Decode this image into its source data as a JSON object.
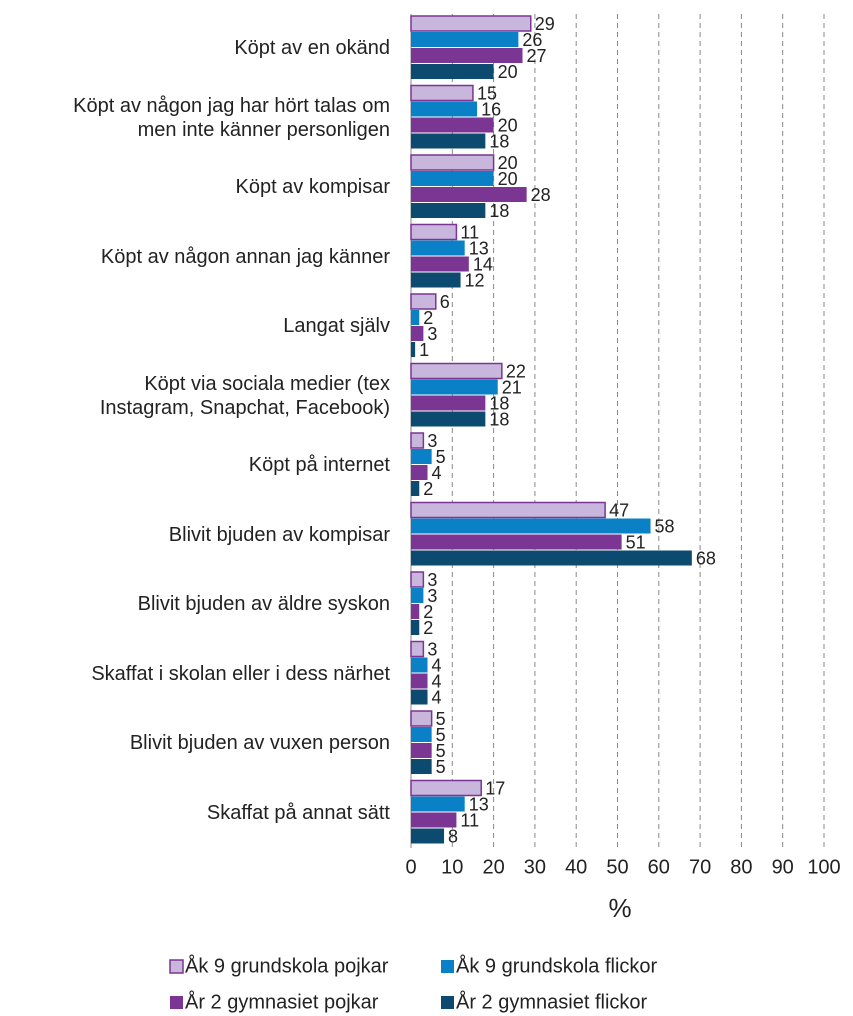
{
  "chart_data": {
    "type": "bar",
    "orientation": "horizontal",
    "x_label": "%",
    "categories": [
      "Köpt av en okänd",
      "Köpt av någon jag har hört talas om\nmen inte känner personligen",
      "Köpt av kompisar",
      "Köpt av någon annan jag känner",
      "Langat själv",
      "Köpt via sociala medier (tex\nInstagram, Snapchat, Facebook)",
      "Köpt på internet",
      "Blivit bjuden av kompisar",
      "Blivit bjuden av äldre syskon",
      "Skaffat i skolan eller i dess närhet",
      "Blivit bjuden av vuxen person",
      "Skaffat på annat sätt"
    ],
    "series": [
      {
        "name": "Åk 9 grundskola pojkar",
        "color": "#c9b6dc",
        "values": [
          29,
          15,
          20,
          11,
          6,
          22,
          3,
          47,
          3,
          3,
          5,
          17
        ]
      },
      {
        "name": "Åk 9 grundskola flickor",
        "color": "#0a80c6",
        "values": [
          26,
          16,
          20,
          13,
          2,
          21,
          5,
          58,
          3,
          4,
          5,
          13
        ]
      },
      {
        "name": "År 2 gymnasiet pojkar",
        "color": "#7b3592",
        "values": [
          27,
          20,
          28,
          14,
          3,
          18,
          4,
          51,
          2,
          4,
          5,
          11
        ]
      },
      {
        "name": "År 2 gymnasiet flickor",
        "color": "#0c4a70",
        "values": [
          20,
          18,
          18,
          12,
          1,
          18,
          2,
          68,
          2,
          4,
          5,
          8
        ]
      }
    ],
    "xlim": [
      0,
      100
    ],
    "xticks": [
      0,
      10,
      20,
      30,
      40,
      50,
      60,
      70,
      80,
      90,
      100
    ],
    "grid": true
  }
}
